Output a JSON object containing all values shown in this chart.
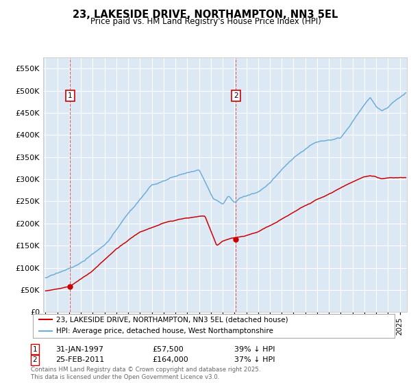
{
  "title": "23, LAKESIDE DRIVE, NORTHAMPTON, NN3 5EL",
  "subtitle": "Price paid vs. HM Land Registry's House Price Index (HPI)",
  "legend_line1": "23, LAKESIDE DRIVE, NORTHAMPTON, NN3 5EL (detached house)",
  "legend_line2": "HPI: Average price, detached house, West Northamptonshire",
  "annotation1_date": "31-JAN-1997",
  "annotation1_price": "£57,500",
  "annotation1_hpi": "39% ↓ HPI",
  "annotation2_date": "25-FEB-2011",
  "annotation2_price": "£164,000",
  "annotation2_hpi": "37% ↓ HPI",
  "footer": "Contains HM Land Registry data © Crown copyright and database right 2025.\nThis data is licensed under the Open Government Licence v3.0.",
  "red_line_color": "#cc0000",
  "blue_line_color": "#6baed6",
  "background_color": "#dde8f5",
  "grid_color": "#ffffff",
  "annotation_box_color": "#cc0000",
  "ylim": [
    0,
    575000
  ],
  "yticks": [
    0,
    50000,
    100000,
    150000,
    200000,
    250000,
    300000,
    350000,
    400000,
    450000,
    500000,
    550000
  ],
  "sale1_x": 1997.08,
  "sale1_y": 57500,
  "sale2_x": 2011.12,
  "sale2_y": 164000,
  "xmin": 1994.8,
  "xmax": 2025.6
}
